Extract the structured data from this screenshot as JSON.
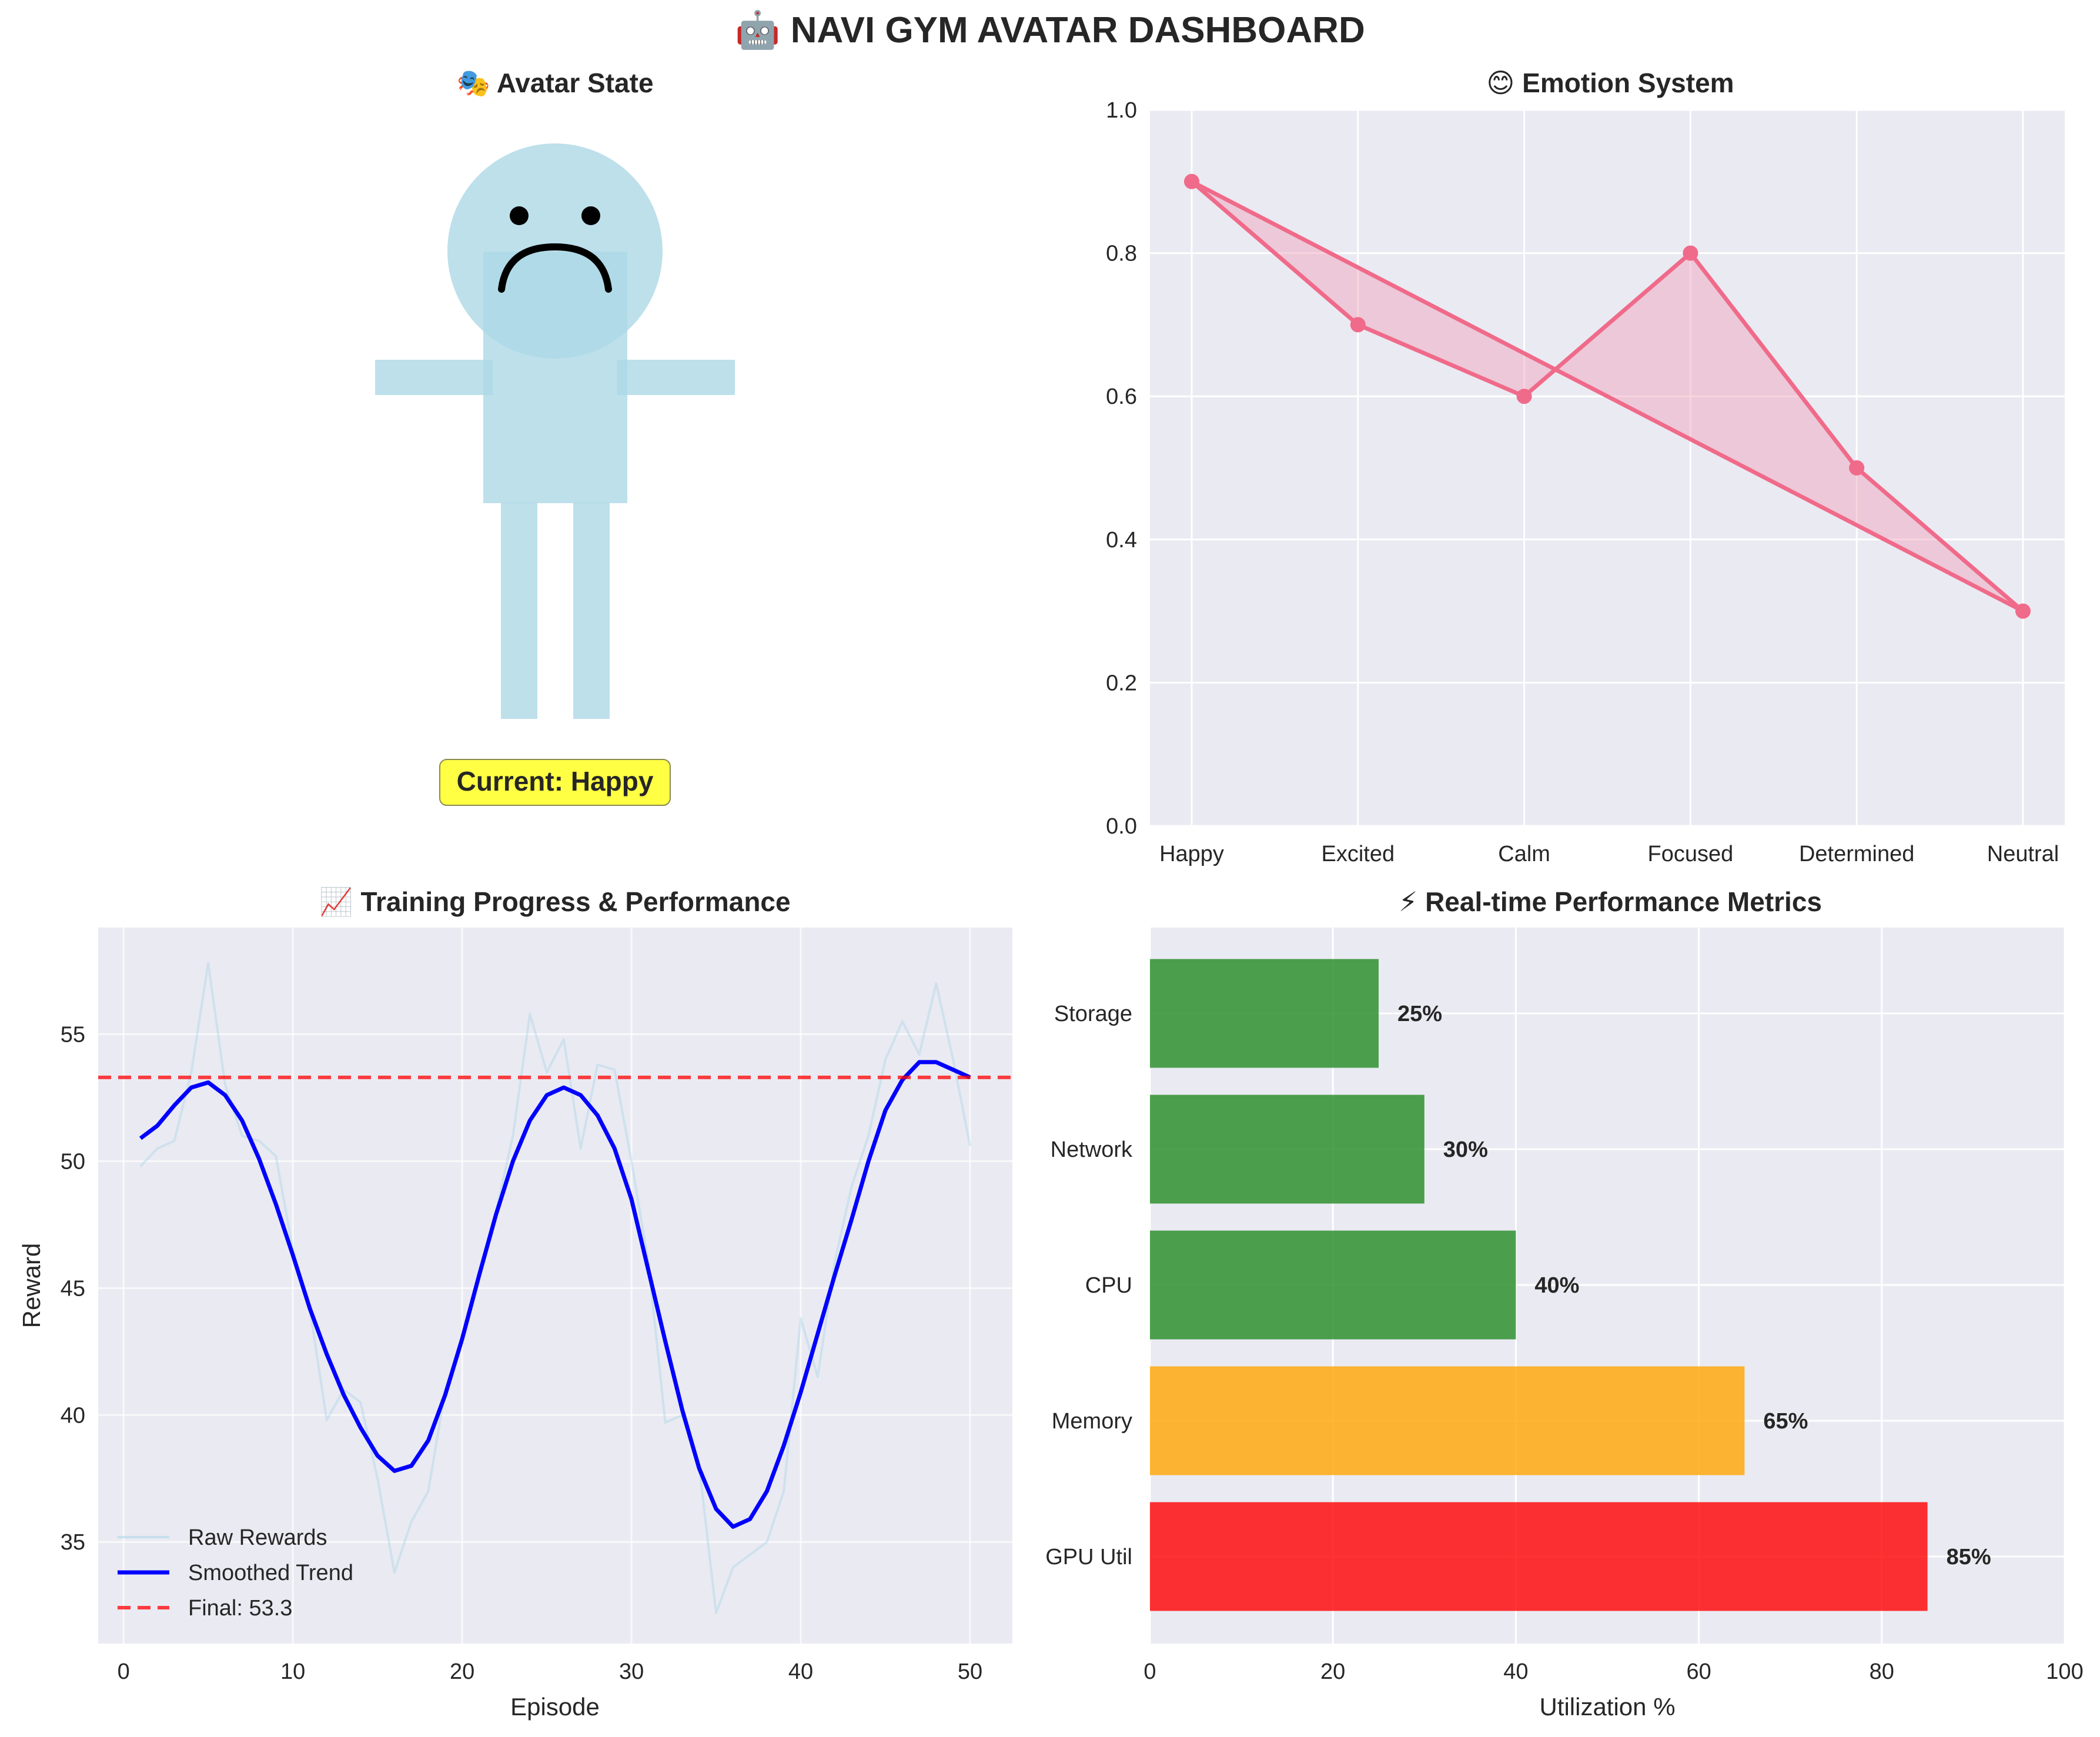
{
  "suptitle": "🤖 NAVI GYM AVATAR DASHBOARD",
  "colors": {
    "plot_bg": "#EAEAF2",
    "grid": "#FFFFFF",
    "avatar": "#ADD8E6",
    "emotion": "#F06A8A",
    "emotion_fill": "#F0A0B8",
    "raw": "#ADD8E6",
    "smooth": "#0000FF",
    "final": "#FF0000",
    "bar_green": "#228B22",
    "bar_orange": "#FFA500",
    "bar_red": "#FF0000",
    "badge_bg": "#FFFF44"
  },
  "chart_data": [
    {
      "type": "avatar",
      "title": "🎭 Avatar State",
      "status_label": "Current: Happy",
      "expression": "frown"
    },
    {
      "type": "line",
      "title": "😊 Emotion System",
      "categories": [
        "Happy",
        "Excited",
        "Calm",
        "Focused",
        "Determined",
        "Neutral"
      ],
      "values": [
        0.9,
        0.7,
        0.6,
        0.8,
        0.5,
        0.3
      ],
      "ylim": [
        0.0,
        1.0
      ],
      "yticks": [
        "0.0",
        "0.2",
        "0.4",
        "0.6",
        "0.8",
        "1.0"
      ],
      "filled": true
    },
    {
      "type": "line",
      "title": "📈 Training Progress & Performance",
      "xlabel": "Episode",
      "ylabel": "Reward",
      "xlim": [
        -1.5,
        52.5
      ],
      "ylim": [
        31.0,
        59.2
      ],
      "xticks": [
        "0",
        "10",
        "20",
        "30",
        "40",
        "50"
      ],
      "yticks": [
        "35",
        "40",
        "45",
        "50",
        "55"
      ],
      "x": [
        1,
        2,
        3,
        4,
        5,
        6,
        7,
        8,
        9,
        10,
        11,
        12,
        13,
        14,
        15,
        16,
        17,
        18,
        19,
        20,
        21,
        22,
        23,
        24,
        25,
        26,
        27,
        28,
        29,
        30,
        31,
        32,
        33,
        34,
        35,
        36,
        37,
        38,
        39,
        40,
        41,
        42,
        43,
        44,
        45,
        46,
        47,
        48,
        49,
        50
      ],
      "series": [
        {
          "name": "Raw Rewards",
          "values": [
            49.8,
            50.5,
            50.8,
            53.5,
            57.8,
            53.0,
            51.0,
            50.8,
            50.2,
            46.5,
            44.2,
            39.8,
            41.0,
            40.5,
            37.5,
            33.8,
            35.8,
            37.0,
            41.0,
            43.0,
            45.5,
            48.0,
            51.0,
            55.8,
            53.5,
            54.8,
            50.5,
            53.8,
            53.6,
            50.0,
            46.0,
            39.7,
            40.0,
            38.0,
            32.2,
            34.0,
            34.5,
            35.0,
            37.0,
            43.8,
            41.5,
            46.0,
            49.0,
            51.0,
            54.0,
            55.5,
            54.2,
            57.0,
            54.0,
            50.6
          ]
        },
        {
          "name": "Smoothed Trend",
          "values": [
            50.9,
            51.4,
            52.2,
            52.9,
            53.1,
            52.6,
            51.6,
            50.1,
            48.3,
            46.3,
            44.2,
            42.4,
            40.8,
            39.5,
            38.4,
            37.8,
            38.0,
            39.0,
            40.8,
            43.0,
            45.5,
            47.9,
            50.0,
            51.6,
            52.6,
            52.9,
            52.6,
            51.8,
            50.5,
            48.5,
            45.7,
            42.9,
            40.2,
            37.9,
            36.3,
            35.6,
            35.9,
            37.0,
            38.8,
            40.9,
            43.2,
            45.5,
            47.7,
            50.0,
            52.0,
            53.2,
            53.9,
            53.9,
            53.6,
            53.3
          ]
        }
      ],
      "final": {
        "name": "Final: 53.3",
        "value": 53.3
      },
      "legend_position": "lower-left"
    },
    {
      "type": "bar",
      "orientation": "horizontal",
      "title": "⚡ Real-time Performance Metrics",
      "xlabel": "Utilization %",
      "categories": [
        "GPU Util",
        "Memory",
        "CPU",
        "Network",
        "Storage"
      ],
      "values": [
        85,
        65,
        40,
        30,
        25
      ],
      "labels": [
        "85%",
        "65%",
        "40%",
        "30%",
        "25%"
      ],
      "bar_colors": [
        "red",
        "orange",
        "green",
        "green",
        "green"
      ],
      "xlim": [
        0,
        100
      ],
      "xticks": [
        "0",
        "20",
        "40",
        "60",
        "80",
        "100"
      ]
    }
  ]
}
